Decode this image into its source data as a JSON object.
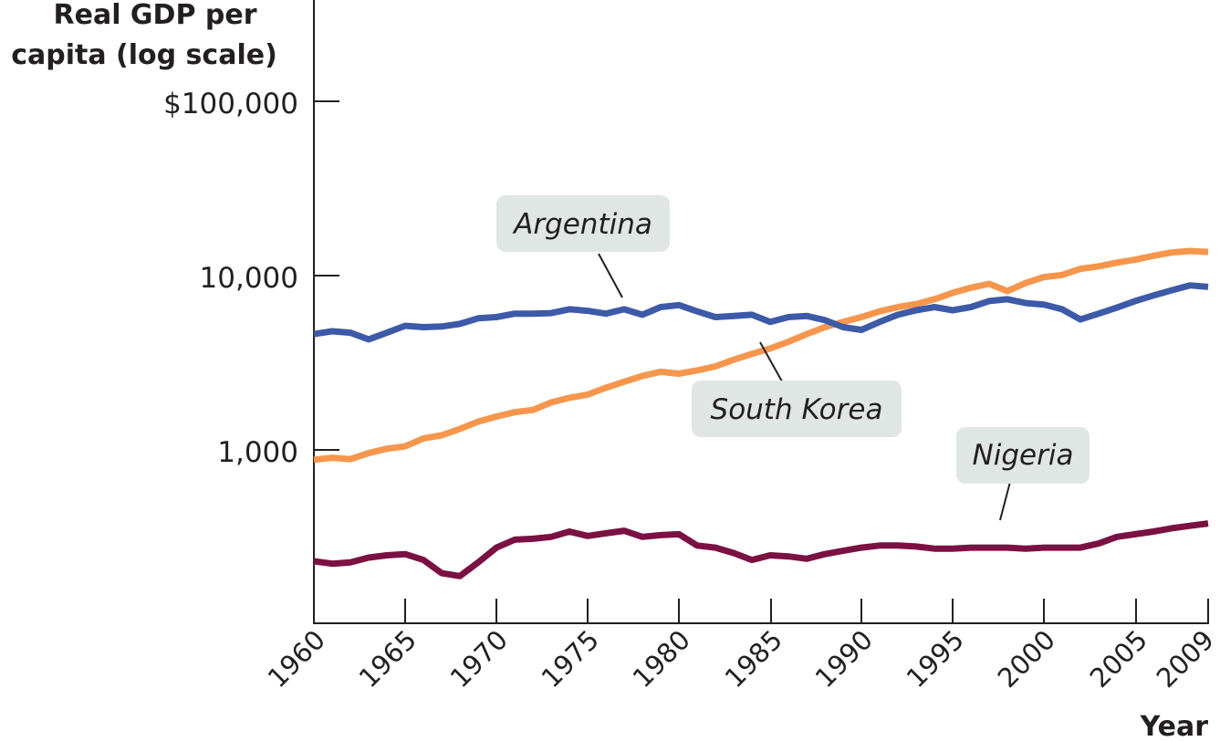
{
  "chart_data": {
    "type": "line",
    "ylabel_lines": [
      "Real GDP per",
      "capita (log scale)"
    ],
    "xlabel": "Year",
    "y_scale": "log",
    "ylim": [
      150,
      100000
    ],
    "xlim": [
      1960,
      2009
    ],
    "y_ticks": [
      {
        "value": 100000,
        "label": "$100,000"
      },
      {
        "value": 10000,
        "label": "10,000"
      },
      {
        "value": 1000,
        "label": "1,000"
      }
    ],
    "x_ticks": [
      {
        "value": 1960,
        "label": "1960"
      },
      {
        "value": 1965,
        "label": "1965"
      },
      {
        "value": 1970,
        "label": "1970"
      },
      {
        "value": 1975,
        "label": "1975"
      },
      {
        "value": 1980,
        "label": "1980"
      },
      {
        "value": 1985,
        "label": "1985"
      },
      {
        "value": 1990,
        "label": "1990"
      },
      {
        "value": 1995,
        "label": "1995"
      },
      {
        "value": 2000,
        "label": "2000"
      },
      {
        "value": 2005,
        "label": "2005"
      },
      {
        "value": 2009,
        "label": "2009"
      }
    ],
    "x": [
      1960,
      1961,
      1962,
      1963,
      1964,
      1965,
      1966,
      1967,
      1968,
      1969,
      1970,
      1971,
      1972,
      1973,
      1974,
      1975,
      1976,
      1977,
      1978,
      1979,
      1980,
      1981,
      1982,
      1983,
      1984,
      1985,
      1986,
      1987,
      1988,
      1989,
      1990,
      1991,
      1992,
      1993,
      1994,
      1995,
      1996,
      1997,
      1998,
      1999,
      2000,
      2001,
      2002,
      2003,
      2004,
      2005,
      2006,
      2007,
      2008,
      2009
    ],
    "series": [
      {
        "name": "Argentina",
        "color": "#3d5aa9",
        "values": [
          5500,
          5700,
          5600,
          5150,
          5600,
          6100,
          6000,
          6050,
          6250,
          6700,
          6800,
          7100,
          7100,
          7150,
          7500,
          7350,
          7100,
          7500,
          7000,
          7700,
          7900,
          7300,
          6800,
          6900,
          7000,
          6400,
          6800,
          6900,
          6550,
          6000,
          5800,
          6400,
          7000,
          7400,
          7700,
          7400,
          7700,
          8300,
          8500,
          8100,
          7950,
          7500,
          6600,
          7100,
          7650,
          8300,
          8900,
          9500,
          10100,
          9900
        ]
      },
      {
        "name": "South Korea",
        "color": "#f6964d",
        "values": [
          1150,
          1180,
          1160,
          1250,
          1320,
          1360,
          1500,
          1560,
          1690,
          1850,
          1970,
          2080,
          2140,
          2350,
          2490,
          2590,
          2820,
          3040,
          3270,
          3440,
          3360,
          3500,
          3680,
          4000,
          4300,
          4600,
          5000,
          5500,
          6000,
          6400,
          6800,
          7300,
          7700,
          8000,
          8500,
          9200,
          9800,
          10300,
          9400,
          10400,
          11200,
          11500,
          12400,
          12800,
          13400,
          13900,
          14600,
          15200,
          15500,
          15300
        ]
      },
      {
        "name": "Nigeria",
        "color": "#7b1142",
        "values": [
          325,
          315,
          320,
          340,
          350,
          355,
          330,
          280,
          270,
          320,
          385,
          425,
          430,
          440,
          470,
          445,
          460,
          475,
          440,
          450,
          455,
          395,
          385,
          360,
          330,
          350,
          345,
          335,
          355,
          370,
          385,
          395,
          395,
          390,
          380,
          380,
          385,
          385,
          385,
          380,
          385,
          385,
          385,
          405,
          440,
          455,
          470,
          490,
          505,
          520
        ]
      }
    ]
  }
}
